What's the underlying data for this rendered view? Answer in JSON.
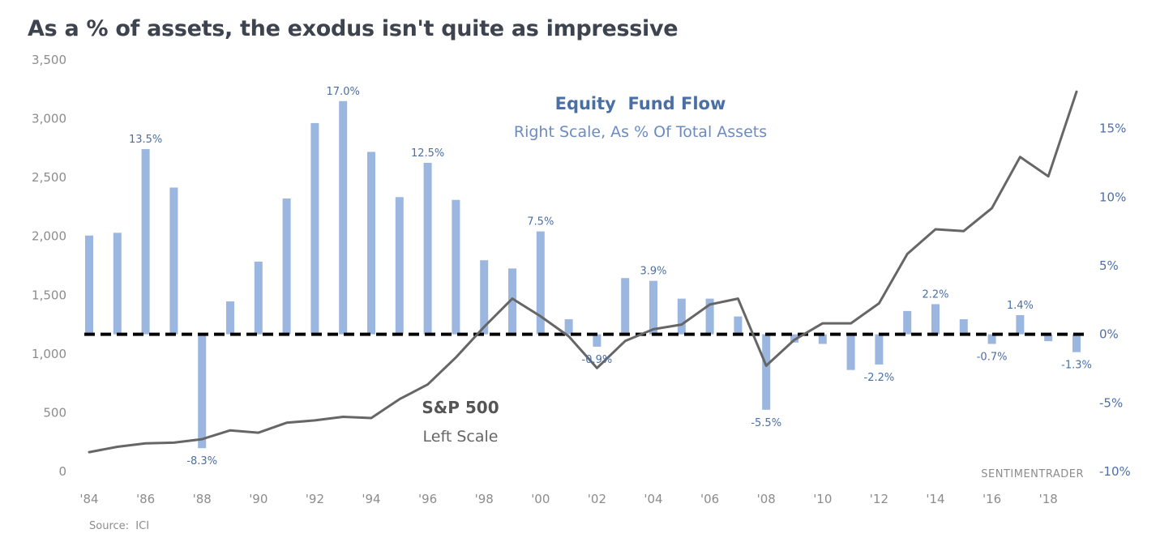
{
  "chart_data": {
    "type": "bar",
    "title": "As a % of assets, the exodus isn't quite as impressive",
    "x_tick_labels": [
      "'84",
      "'86",
      "'88",
      "'90",
      "'92",
      "'94",
      "'96",
      "'98",
      "'00",
      "'02",
      "'04",
      "'06",
      "'08",
      "'10",
      "'12",
      "'14",
      "'16",
      "'18"
    ],
    "left_axis": {
      "ylim": [
        0,
        3500
      ],
      "ticks": [
        "0",
        "500",
        "1,000",
        "1,500",
        "2,000",
        "2,500",
        "3,000",
        "3,500"
      ]
    },
    "right_axis": {
      "ylim": [
        -10,
        20
      ],
      "ticks": [
        {
          "value": -10,
          "label": "-10%"
        },
        {
          "value": -5,
          "label": "-5%"
        },
        {
          "value": 0,
          "label": "0%"
        },
        {
          "value": 5,
          "label": "5%"
        },
        {
          "value": 10,
          "label": "10%"
        },
        {
          "value": 15,
          "label": "15%"
        }
      ]
    },
    "years": [
      1984,
      1985,
      1986,
      1987,
      1988,
      1989,
      1990,
      1991,
      1992,
      1993,
      1994,
      1995,
      1996,
      1997,
      1998,
      1999,
      2000,
      2001,
      2002,
      2003,
      2004,
      2005,
      2006,
      2007,
      2008,
      2009,
      2010,
      2011,
      2012,
      2013,
      2014,
      2015,
      2016,
      2017,
      2018,
      2019
    ],
    "series": [
      {
        "name": "Equity Fund Flow",
        "type": "bar",
        "axis": "right",
        "color": "#9bb7e0",
        "values": [
          7.2,
          7.4,
          13.5,
          10.7,
          -8.3,
          2.4,
          5.3,
          9.9,
          15.4,
          17.0,
          13.3,
          10.0,
          12.5,
          9.8,
          5.4,
          4.8,
          7.5,
          1.1,
          -0.9,
          4.1,
          3.9,
          2.6,
          2.6,
          1.3,
          -5.5,
          -0.6,
          -0.7,
          -2.6,
          -2.2,
          1.7,
          2.2,
          1.1,
          -0.7,
          1.4,
          -0.5,
          -1.3
        ]
      },
      {
        "name": "S&P 500",
        "type": "line",
        "axis": "left",
        "color": "#666666",
        "values": [
          165,
          210,
          240,
          245,
          275,
          350,
          330,
          415,
          435,
          465,
          455,
          615,
          740,
          970,
          1230,
          1470,
          1320,
          1150,
          880,
          1110,
          1210,
          1250,
          1420,
          1470,
          900,
          1120,
          1260,
          1260,
          1430,
          1850,
          2060,
          2045,
          2240,
          2675,
          2510,
          3230
        ]
      }
    ],
    "bar_labels": [
      {
        "year": 1986,
        "text": "13.5%"
      },
      {
        "year": 1988,
        "text": "-8.3%"
      },
      {
        "year": 1993,
        "text": "17.0%"
      },
      {
        "year": 1996,
        "text": "12.5%"
      },
      {
        "year": 2000,
        "text": "7.5%"
      },
      {
        "year": 2002,
        "text": "-0.9%"
      },
      {
        "year": 2004,
        "text": "3.9%"
      },
      {
        "year": 2008,
        "text": "-5.5%"
      },
      {
        "year": 2012,
        "text": "-2.2%"
      },
      {
        "year": 2014,
        "text": "2.2%"
      },
      {
        "year": 2016,
        "text": "-0.7%"
      },
      {
        "year": 2017,
        "text": "1.4%"
      },
      {
        "year": 2019,
        "text": "-1.3%"
      }
    ],
    "zero_line": {
      "style": "dashed",
      "color": "#000000"
    },
    "annotations": {
      "fund_title": "Equity  Fund Flow",
      "fund_subtitle": "Right Scale, As % Of Total Assets",
      "spx_title": "S&P 500",
      "spx_subtitle": "Left Scale",
      "source": "Source:  ICI",
      "brand": "SENTIMENTRADER"
    },
    "grid": false,
    "legend": "none"
  }
}
